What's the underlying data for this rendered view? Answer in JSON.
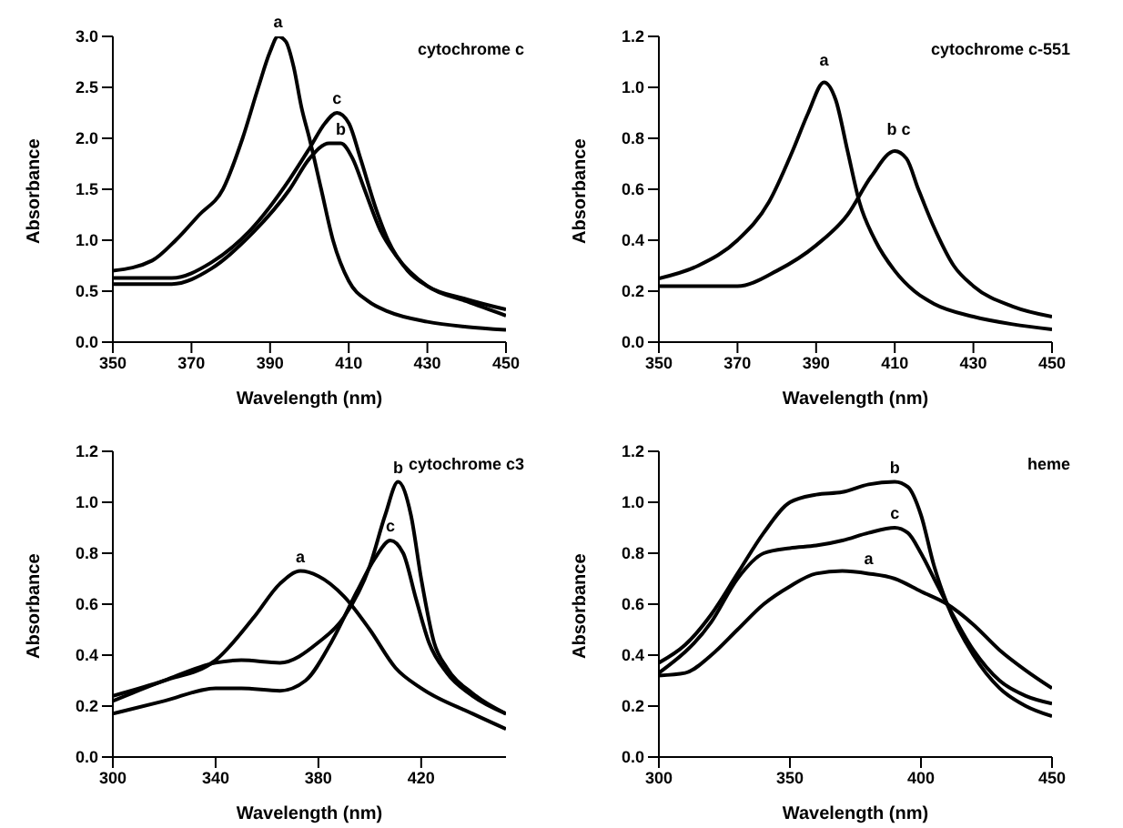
{
  "chart_data": [
    {
      "type": "line",
      "title": "cytochrome c",
      "xlabel": "Wavelength (nm)",
      "ylabel": "Absorbance",
      "xlim": [
        350,
        450
      ],
      "xticks": [
        350,
        370,
        390,
        410,
        430,
        450
      ],
      "ylim": [
        0,
        3
      ],
      "yticks": [
        {
          "value": 0,
          "label": "0.0"
        },
        {
          "value": 0.5,
          "label": "0.5"
        },
        {
          "value": 1,
          "label": "1.0"
        },
        {
          "value": 1.5,
          "label": "1.5"
        },
        {
          "value": 2,
          "label": "2.0"
        },
        {
          "value": 2.5,
          "label": "2.5"
        },
        {
          "value": 3,
          "label": "3.0"
        }
      ],
      "grid": false,
      "legend": false,
      "marker": "none",
      "line_style": "solid",
      "series": [
        {
          "color": "#000000",
          "x": [
            350,
            360,
            366,
            372,
            378,
            383,
            387,
            390,
            392,
            394,
            396,
            398,
            400,
            403,
            406,
            410,
            415,
            420,
            430,
            440,
            450
          ],
          "values": [
            0.7,
            0.8,
            1.0,
            1.25,
            1.5,
            2.0,
            2.5,
            2.85,
            3.0,
            2.95,
            2.7,
            2.3,
            2.0,
            1.5,
            1.0,
            0.6,
            0.4,
            0.3,
            0.2,
            0.15,
            0.12
          ]
        },
        {
          "color": "#000000",
          "x": [
            350,
            365,
            375,
            385,
            395,
            400,
            405,
            408,
            411,
            414,
            418,
            422,
            430,
            440,
            450
          ],
          "values": [
            0.57,
            0.57,
            0.72,
            1.05,
            1.5,
            1.8,
            1.95,
            1.95,
            1.8,
            1.5,
            1.1,
            0.85,
            0.55,
            0.4,
            0.26
          ]
        },
        {
          "color": "#000000",
          "x": [
            350,
            365,
            375,
            385,
            395,
            400,
            404,
            407,
            410,
            413,
            417,
            420,
            425,
            430,
            440,
            450
          ],
          "values": [
            0.63,
            0.63,
            0.78,
            1.1,
            1.6,
            1.9,
            2.15,
            2.25,
            2.15,
            1.8,
            1.3,
            1.0,
            0.7,
            0.55,
            0.42,
            0.32
          ]
        }
      ],
      "annotations": [
        {
          "text": "a",
          "x": 392,
          "y": 3.0
        },
        {
          "text": "b",
          "x": 408,
          "y": 1.95
        },
        {
          "text": "c",
          "x": 407,
          "y": 2.25
        }
      ]
    },
    {
      "type": "line",
      "title": "cytochrome c-551",
      "xlabel": "Wavelength (nm)",
      "ylabel": "Absorbance",
      "xlim": [
        350,
        450
      ],
      "xticks": [
        350,
        370,
        390,
        410,
        430,
        450
      ],
      "ylim": [
        0,
        1.2
      ],
      "yticks": [
        {
          "value": 0,
          "label": "0.0"
        },
        {
          "value": 0.2,
          "label": "0.2"
        },
        {
          "value": 0.4,
          "label": "0.4"
        },
        {
          "value": 0.6,
          "label": "0.6"
        },
        {
          "value": 0.8,
          "label": "0.8"
        },
        {
          "value": 1,
          "label": "1.0"
        },
        {
          "value": 1.2,
          "label": "1.2"
        }
      ],
      "grid": false,
      "legend": false,
      "marker": "none",
      "line_style": "solid",
      "series": [
        {
          "color": "#000000",
          "x": [
            350,
            360,
            370,
            378,
            384,
            388,
            392,
            395,
            398,
            401,
            405,
            410,
            415,
            420,
            430,
            440,
            450
          ],
          "values": [
            0.25,
            0.3,
            0.4,
            0.55,
            0.75,
            0.9,
            1.02,
            0.95,
            0.75,
            0.55,
            0.4,
            0.28,
            0.2,
            0.15,
            0.1,
            0.07,
            0.05
          ]
        },
        {
          "color": "#000000",
          "x": [
            350,
            360,
            370,
            380,
            390,
            398,
            404,
            410,
            413,
            416,
            420,
            425,
            430,
            440,
            450
          ],
          "values": [
            0.22,
            0.22,
            0.22,
            0.28,
            0.38,
            0.5,
            0.65,
            0.75,
            0.72,
            0.6,
            0.45,
            0.3,
            0.22,
            0.14,
            0.1
          ]
        }
      ],
      "annotations": [
        {
          "text": "a",
          "x": 392,
          "y": 1.05
        },
        {
          "text": "b c",
          "x": 411,
          "y": 0.78
        }
      ]
    },
    {
      "type": "line",
      "title": "cytochrome c3",
      "xlabel": "Wavelength (nm)",
      "ylabel": "Absorbance",
      "xlim": [
        300,
        453
      ],
      "xticks": [
        300,
        340,
        380,
        420
      ],
      "ylim": [
        0,
        1.2
      ],
      "yticks": [
        {
          "value": 0,
          "label": "0.0"
        },
        {
          "value": 0.2,
          "label": "0.2"
        },
        {
          "value": 0.4,
          "label": "0.4"
        },
        {
          "value": 0.6,
          "label": "0.6"
        },
        {
          "value": 0.8,
          "label": "0.8"
        },
        {
          "value": 1,
          "label": "1.0"
        },
        {
          "value": 1.2,
          "label": "1.2"
        }
      ],
      "grid": false,
      "legend": false,
      "marker": "none",
      "line_style": "solid",
      "series": [
        {
          "color": "#000000",
          "x": [
            300,
            320,
            340,
            355,
            365,
            373,
            380,
            390,
            400,
            410,
            420,
            440,
            453
          ],
          "values": [
            0.24,
            0.3,
            0.38,
            0.55,
            0.68,
            0.73,
            0.71,
            0.63,
            0.5,
            0.35,
            0.27,
            0.17,
            0.11
          ]
        },
        {
          "color": "#000000",
          "x": [
            300,
            320,
            340,
            350,
            365,
            380,
            390,
            400,
            406,
            411,
            416,
            420,
            425,
            430,
            440,
            453
          ],
          "values": [
            0.22,
            0.3,
            0.37,
            0.38,
            0.37,
            0.45,
            0.55,
            0.75,
            0.95,
            1.08,
            0.95,
            0.7,
            0.45,
            0.35,
            0.25,
            0.17
          ]
        },
        {
          "color": "#000000",
          "x": [
            300,
            320,
            340,
            350,
            365,
            375,
            385,
            395,
            402,
            408,
            413,
            418,
            423,
            430,
            440,
            453
          ],
          "values": [
            0.17,
            0.22,
            0.27,
            0.27,
            0.26,
            0.3,
            0.45,
            0.65,
            0.78,
            0.85,
            0.8,
            0.62,
            0.45,
            0.33,
            0.24,
            0.17
          ]
        }
      ],
      "annotations": [
        {
          "text": "a",
          "x": 373,
          "y": 0.73
        },
        {
          "text": "b",
          "x": 411,
          "y": 1.08
        },
        {
          "text": "c",
          "x": 408,
          "y": 0.85
        }
      ]
    },
    {
      "type": "line",
      "title": "heme",
      "xlabel": "Wavelength (nm)",
      "ylabel": "Absorbance",
      "xlim": [
        300,
        450
      ],
      "xticks": [
        300,
        350,
        400,
        450
      ],
      "ylim": [
        0,
        1.2
      ],
      "yticks": [
        {
          "value": 0,
          "label": "0.0"
        },
        {
          "value": 0.2,
          "label": "0.2"
        },
        {
          "value": 0.4,
          "label": "0.4"
        },
        {
          "value": 0.6,
          "label": "0.6"
        },
        {
          "value": 0.8,
          "label": "0.8"
        },
        {
          "value": 1,
          "label": "1.0"
        },
        {
          "value": 1.2,
          "label": "1.2"
        }
      ],
      "grid": false,
      "legend": false,
      "marker": "none",
      "line_style": "solid",
      "series": [
        {
          "color": "#000000",
          "x": [
            300,
            310,
            320,
            330,
            340,
            350,
            360,
            370,
            380,
            390,
            400,
            410,
            420,
            430,
            440,
            450
          ],
          "values": [
            0.32,
            0.33,
            0.4,
            0.5,
            0.6,
            0.67,
            0.72,
            0.73,
            0.72,
            0.7,
            0.65,
            0.6,
            0.52,
            0.42,
            0.34,
            0.27
          ]
        },
        {
          "color": "#000000",
          "x": [
            300,
            310,
            320,
            330,
            340,
            350,
            360,
            370,
            380,
            390,
            395,
            400,
            405,
            410,
            420,
            430,
            440,
            450
          ],
          "values": [
            0.37,
            0.44,
            0.56,
            0.72,
            0.88,
            1.0,
            1.03,
            1.04,
            1.07,
            1.08,
            1.06,
            0.95,
            0.75,
            0.6,
            0.4,
            0.27,
            0.2,
            0.16
          ]
        },
        {
          "color": "#000000",
          "x": [
            300,
            320,
            330,
            340,
            350,
            360,
            370,
            380,
            390,
            395,
            400,
            405,
            410,
            420,
            430,
            440,
            450
          ],
          "values": [
            0.33,
            0.53,
            0.7,
            0.8,
            0.82,
            0.83,
            0.85,
            0.88,
            0.9,
            0.88,
            0.8,
            0.7,
            0.6,
            0.42,
            0.3,
            0.24,
            0.21
          ]
        }
      ],
      "annotations": [
        {
          "text": "a",
          "x": 380,
          "y": 0.72
        },
        {
          "text": "b",
          "x": 390,
          "y": 1.08
        },
        {
          "text": "c",
          "x": 390,
          "y": 0.9
        }
      ]
    }
  ]
}
